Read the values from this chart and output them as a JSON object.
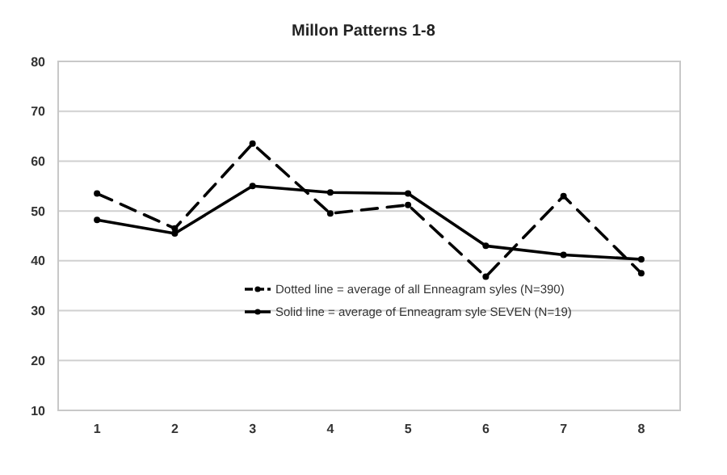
{
  "chart_data": {
    "type": "line",
    "title": "Millon Patterns 1-8",
    "categories": [
      "1",
      "2",
      "3",
      "4",
      "5",
      "6",
      "7",
      "8"
    ],
    "series": [
      {
        "name": "Dotted line = average of all Enneagram syles (N=390)",
        "color": "#000000",
        "line_style": "dashed",
        "values": [
          53.5,
          46.5,
          63.5,
          49.5,
          51.2,
          36.8,
          53,
          37.5
        ]
      },
      {
        "name": "Solid line = average of Enneagram syle SEVEN (N=19)",
        "color": "#000000",
        "line_style": "solid",
        "values": [
          48.2,
          45.5,
          55,
          53.7,
          53.5,
          43,
          41.2,
          40.3
        ]
      }
    ],
    "ylim": [
      10,
      80
    ],
    "yticks": [
      10,
      20,
      30,
      40,
      50,
      60,
      70,
      80
    ],
    "grid": "y",
    "legend": "bottom",
    "marker": "circle"
  }
}
